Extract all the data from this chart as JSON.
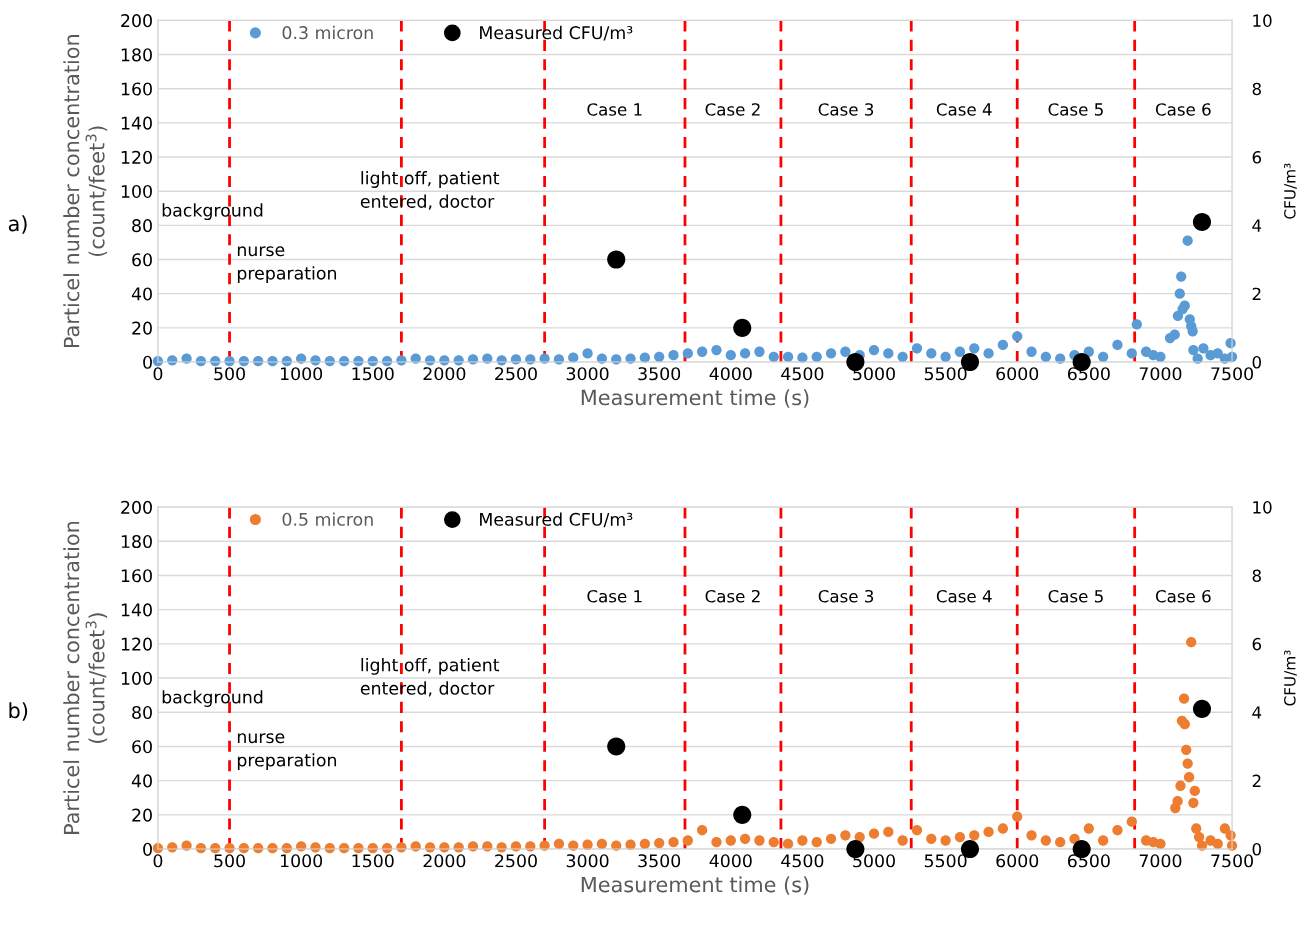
{
  "chart_data": [
    {
      "type": "scatter",
      "xlabel": "Measurement time (s)",
      "ylabel": "Particel number concentration\n(count/feet$^{3}$)",
      "y2label": "CFU/m³",
      "xlim": [
        0,
        7500
      ],
      "xticks": [
        0,
        500,
        1000,
        1500,
        2000,
        2500,
        3000,
        3500,
        4000,
        4500,
        5000,
        5500,
        6000,
        6500,
        7000,
        7500
      ],
      "ylim": [
        0,
        200
      ],
      "yticks": [
        0,
        20,
        40,
        60,
        80,
        100,
        120,
        140,
        160,
        180,
        200
      ],
      "y2lim": [
        0,
        10
      ],
      "y2ticks": [
        0,
        2,
        4,
        6,
        8,
        10
      ],
      "grid": "y",
      "legend": "top left",
      "marker": "circle",
      "series": [
        {
          "name": "0.3 micron",
          "color": "#5b9bd5",
          "x": [
            0,
            100,
            200,
            300,
            400,
            500,
            600,
            700,
            800,
            900,
            1000,
            1100,
            1200,
            1300,
            1400,
            1500,
            1600,
            1700,
            1800,
            1900,
            2000,
            2100,
            2200,
            2300,
            2400,
            2500,
            2600,
            2700,
            2800,
            2900,
            3000,
            3100,
            3200,
            3300,
            3400,
            3500,
            3600,
            3700,
            3800,
            3900,
            4000,
            4100,
            4200,
            4300,
            4400,
            4500,
            4600,
            4700,
            4800,
            4900,
            5000,
            5100,
            5200,
            5300,
            5400,
            5500,
            5600,
            5700,
            5800,
            5900,
            6000,
            6100,
            6200,
            6300,
            6400,
            6500,
            6600,
            6700,
            6800,
            6835,
            6900,
            6950,
            7000,
            7067,
            7100,
            7122,
            7135,
            7145,
            7155,
            7170,
            7190,
            7205,
            7215,
            7225,
            7230,
            7260,
            7300,
            7350,
            7400,
            7450,
            7490,
            7500
          ],
          "values": [
            0.5,
            1,
            2,
            0.5,
            0.5,
            0.5,
            0.5,
            0.5,
            0.5,
            0.5,
            2,
            1,
            0.5,
            0.5,
            0.5,
            0.5,
            0.5,
            1,
            2,
            1,
            1,
            1,
            1.5,
            2,
            1,
            1.5,
            1.5,
            2,
            1.5,
            2.5,
            5,
            2,
            1.5,
            2,
            2.5,
            3,
            4,
            5,
            6,
            7,
            4,
            5,
            6,
            3,
            3,
            2.5,
            3,
            5,
            6,
            4,
            7,
            5,
            3,
            8,
            5,
            3,
            6,
            8,
            5,
            10,
            15,
            6,
            3,
            2,
            4,
            6,
            3,
            10,
            5,
            22,
            6,
            4,
            3,
            14,
            16,
            27,
            40,
            50,
            31,
            33,
            71,
            25,
            21,
            18,
            7,
            2,
            8,
            4,
            5,
            2,
            11,
            3
          ]
        },
        {
          "name": "Measured CFU/m³",
          "color": "#000000",
          "axis": "y2",
          "x": [
            3200,
            4080,
            4870,
            5670,
            6450,
            7290
          ],
          "values": [
            3.0,
            1.0,
            0,
            0,
            0,
            4.1
          ]
        }
      ],
      "ref_lines": [
        {
          "axis": "x",
          "value": 500,
          "label": null,
          "color": "#ff0000",
          "line_style": "dashed"
        },
        {
          "axis": "x",
          "value": 1700,
          "label": null,
          "color": "#ff0000",
          "line_style": "dashed"
        },
        {
          "axis": "x",
          "value": 2700,
          "label": "Case 1",
          "color": "#ff0000",
          "line_style": "dashed"
        },
        {
          "axis": "x",
          "value": 3680,
          "label": "Case 2",
          "color": "#ff0000",
          "line_style": "dashed"
        },
        {
          "axis": "x",
          "value": 4350,
          "label": "Case 3",
          "color": "#ff0000",
          "line_style": "dashed"
        },
        {
          "axis": "x",
          "value": 5260,
          "label": "Case 4",
          "color": "#ff0000",
          "line_style": "dashed"
        },
        {
          "axis": "x",
          "value": 6000,
          "label": "Case 5",
          "color": "#ff0000",
          "line_style": "dashed"
        },
        {
          "axis": "x",
          "value": 6820,
          "label": "Case 6",
          "color": "#ff0000",
          "line_style": "dashed"
        }
      ],
      "annotations": [
        "background",
        "nurse\npreparation",
        "light off, patient\nentered, doctor",
        "a)"
      ]
    },
    {
      "type": "scatter",
      "xlabel": "Measurement time (s)",
      "ylabel": "Particel number concentration\n(count/feet$^{3}$)",
      "y2label": "CFU/m³",
      "xlim": [
        0,
        7500
      ],
      "xticks": [
        0,
        500,
        1000,
        1500,
        2000,
        2500,
        3000,
        3500,
        4000,
        4500,
        5000,
        5500,
        6000,
        6500,
        7000,
        7500
      ],
      "ylim": [
        0,
        200
      ],
      "yticks": [
        0,
        20,
        40,
        60,
        80,
        100,
        120,
        140,
        160,
        180,
        200
      ],
      "y2lim": [
        0,
        10
      ],
      "y2ticks": [
        0,
        2,
        4,
        6,
        8,
        10
      ],
      "grid": "y",
      "legend": "top left",
      "marker": "circle",
      "series": [
        {
          "name": "0.5 micron",
          "color": "#ed7d31",
          "x": [
            0,
            100,
            200,
            300,
            400,
            500,
            600,
            700,
            800,
            900,
            1000,
            1100,
            1200,
            1300,
            1400,
            1500,
            1600,
            1700,
            1800,
            1900,
            2000,
            2100,
            2200,
            2300,
            2400,
            2500,
            2600,
            2700,
            2800,
            2900,
            3000,
            3100,
            3200,
            3300,
            3400,
            3500,
            3600,
            3700,
            3800,
            3900,
            4000,
            4100,
            4200,
            4300,
            4400,
            4500,
            4600,
            4700,
            4800,
            4900,
            5000,
            5100,
            5200,
            5300,
            5400,
            5500,
            5600,
            5700,
            5800,
            5900,
            6000,
            6100,
            6200,
            6300,
            6400,
            6500,
            6600,
            6700,
            6800,
            6900,
            6950,
            7000,
            7104,
            7120,
            7140,
            7150,
            7165,
            7170,
            7180,
            7190,
            7200,
            7215,
            7230,
            7240,
            7250,
            7270,
            7290,
            7350,
            7400,
            7450,
            7490,
            7500
          ],
          "values": [
            0.5,
            1,
            2,
            0.5,
            0.5,
            0.5,
            0.5,
            0.5,
            0.5,
            0.5,
            1.5,
            1,
            0.5,
            0.5,
            0.5,
            0.5,
            0.5,
            1,
            1.5,
            1,
            1,
            1,
            1.5,
            1.5,
            1,
            1.5,
            1.5,
            2,
            3,
            2,
            2.5,
            3,
            2,
            2.5,
            3,
            3.5,
            4,
            5,
            11,
            4,
            5,
            6,
            5,
            4,
            3,
            5,
            4,
            6,
            8,
            7,
            9,
            10,
            5,
            11,
            6,
            5,
            7,
            8,
            10,
            12,
            19,
            8,
            5,
            4,
            6,
            12,
            5,
            11,
            16,
            5,
            4,
            3,
            24,
            28,
            37,
            75,
            88,
            73,
            58,
            50,
            42,
            121,
            27,
            34,
            12,
            7,
            2,
            5,
            3,
            12,
            8,
            2
          ]
        },
        {
          "name": "Measured CFU/m³",
          "color": "#000000",
          "axis": "y2",
          "x": [
            3200,
            4080,
            4870,
            5670,
            6450,
            7290
          ],
          "values": [
            3.0,
            1.0,
            0,
            0,
            0,
            4.1
          ]
        }
      ],
      "ref_lines": [
        {
          "axis": "x",
          "value": 500,
          "label": null,
          "color": "#ff0000",
          "line_style": "dashed"
        },
        {
          "axis": "x",
          "value": 1700,
          "label": null,
          "color": "#ff0000",
          "line_style": "dashed"
        },
        {
          "axis": "x",
          "value": 2700,
          "label": "Case 1",
          "color": "#ff0000",
          "line_style": "dashed"
        },
        {
          "axis": "x",
          "value": 3680,
          "label": "Case 2",
          "color": "#ff0000",
          "line_style": "dashed"
        },
        {
          "axis": "x",
          "value": 4350,
          "label": "Case 3",
          "color": "#ff0000",
          "line_style": "dashed"
        },
        {
          "axis": "x",
          "value": 5260,
          "label": "Case 4",
          "color": "#ff0000",
          "line_style": "dashed"
        },
        {
          "axis": "x",
          "value": 6000,
          "label": "Case 5",
          "color": "#ff0000",
          "line_style": "dashed"
        },
        {
          "axis": "x",
          "value": 6820,
          "label": "Case 6",
          "color": "#ff0000",
          "line_style": "dashed"
        }
      ],
      "annotations": [
        "background",
        "nurse\npreparation",
        "light off, patient\nentered, doctor",
        "b)"
      ]
    }
  ]
}
